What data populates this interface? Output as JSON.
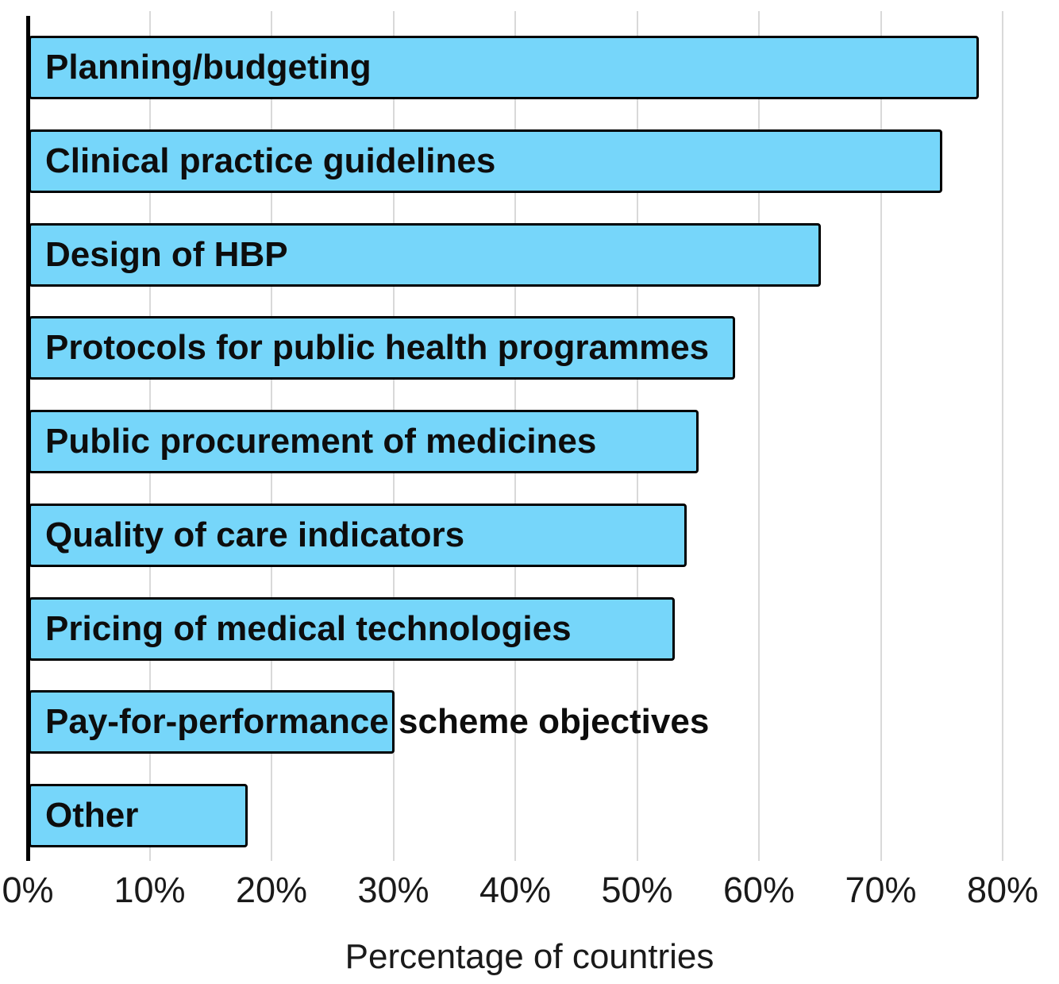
{
  "chart_data": {
    "type": "bar",
    "orientation": "horizontal",
    "title": "",
    "xlabel": "Percentage of countries",
    "ylabel": "",
    "categories": [
      "Planning/budgeting",
      "Clinical practice guidelines",
      "Design of HBP",
      "Protocols for public health programmes",
      "Public procurement of medicines",
      "Quality of care indicators",
      "Pricing of medical technologies",
      "Pay-for-performance scheme objectives",
      "Other"
    ],
    "values": [
      78,
      75,
      65,
      58,
      55,
      54,
      53,
      30,
      18
    ],
    "unit": "%",
    "xlim": [
      0,
      80
    ],
    "xticks": [
      0,
      10,
      20,
      30,
      40,
      50,
      60,
      70,
      80
    ],
    "xtick_labels": [
      "0%",
      "10%",
      "20%",
      "30%",
      "40%",
      "50%",
      "60%",
      "70%",
      "80%"
    ],
    "grid": "vertical-only",
    "legend_position": "none",
    "bar_label_position": "inside-left",
    "colors": {
      "bar_fill": "#76d6fa",
      "bar_border": "#000000",
      "gridline": "#d9d9d9",
      "axis_line": "#000000",
      "text": "#1a1a1a"
    }
  }
}
